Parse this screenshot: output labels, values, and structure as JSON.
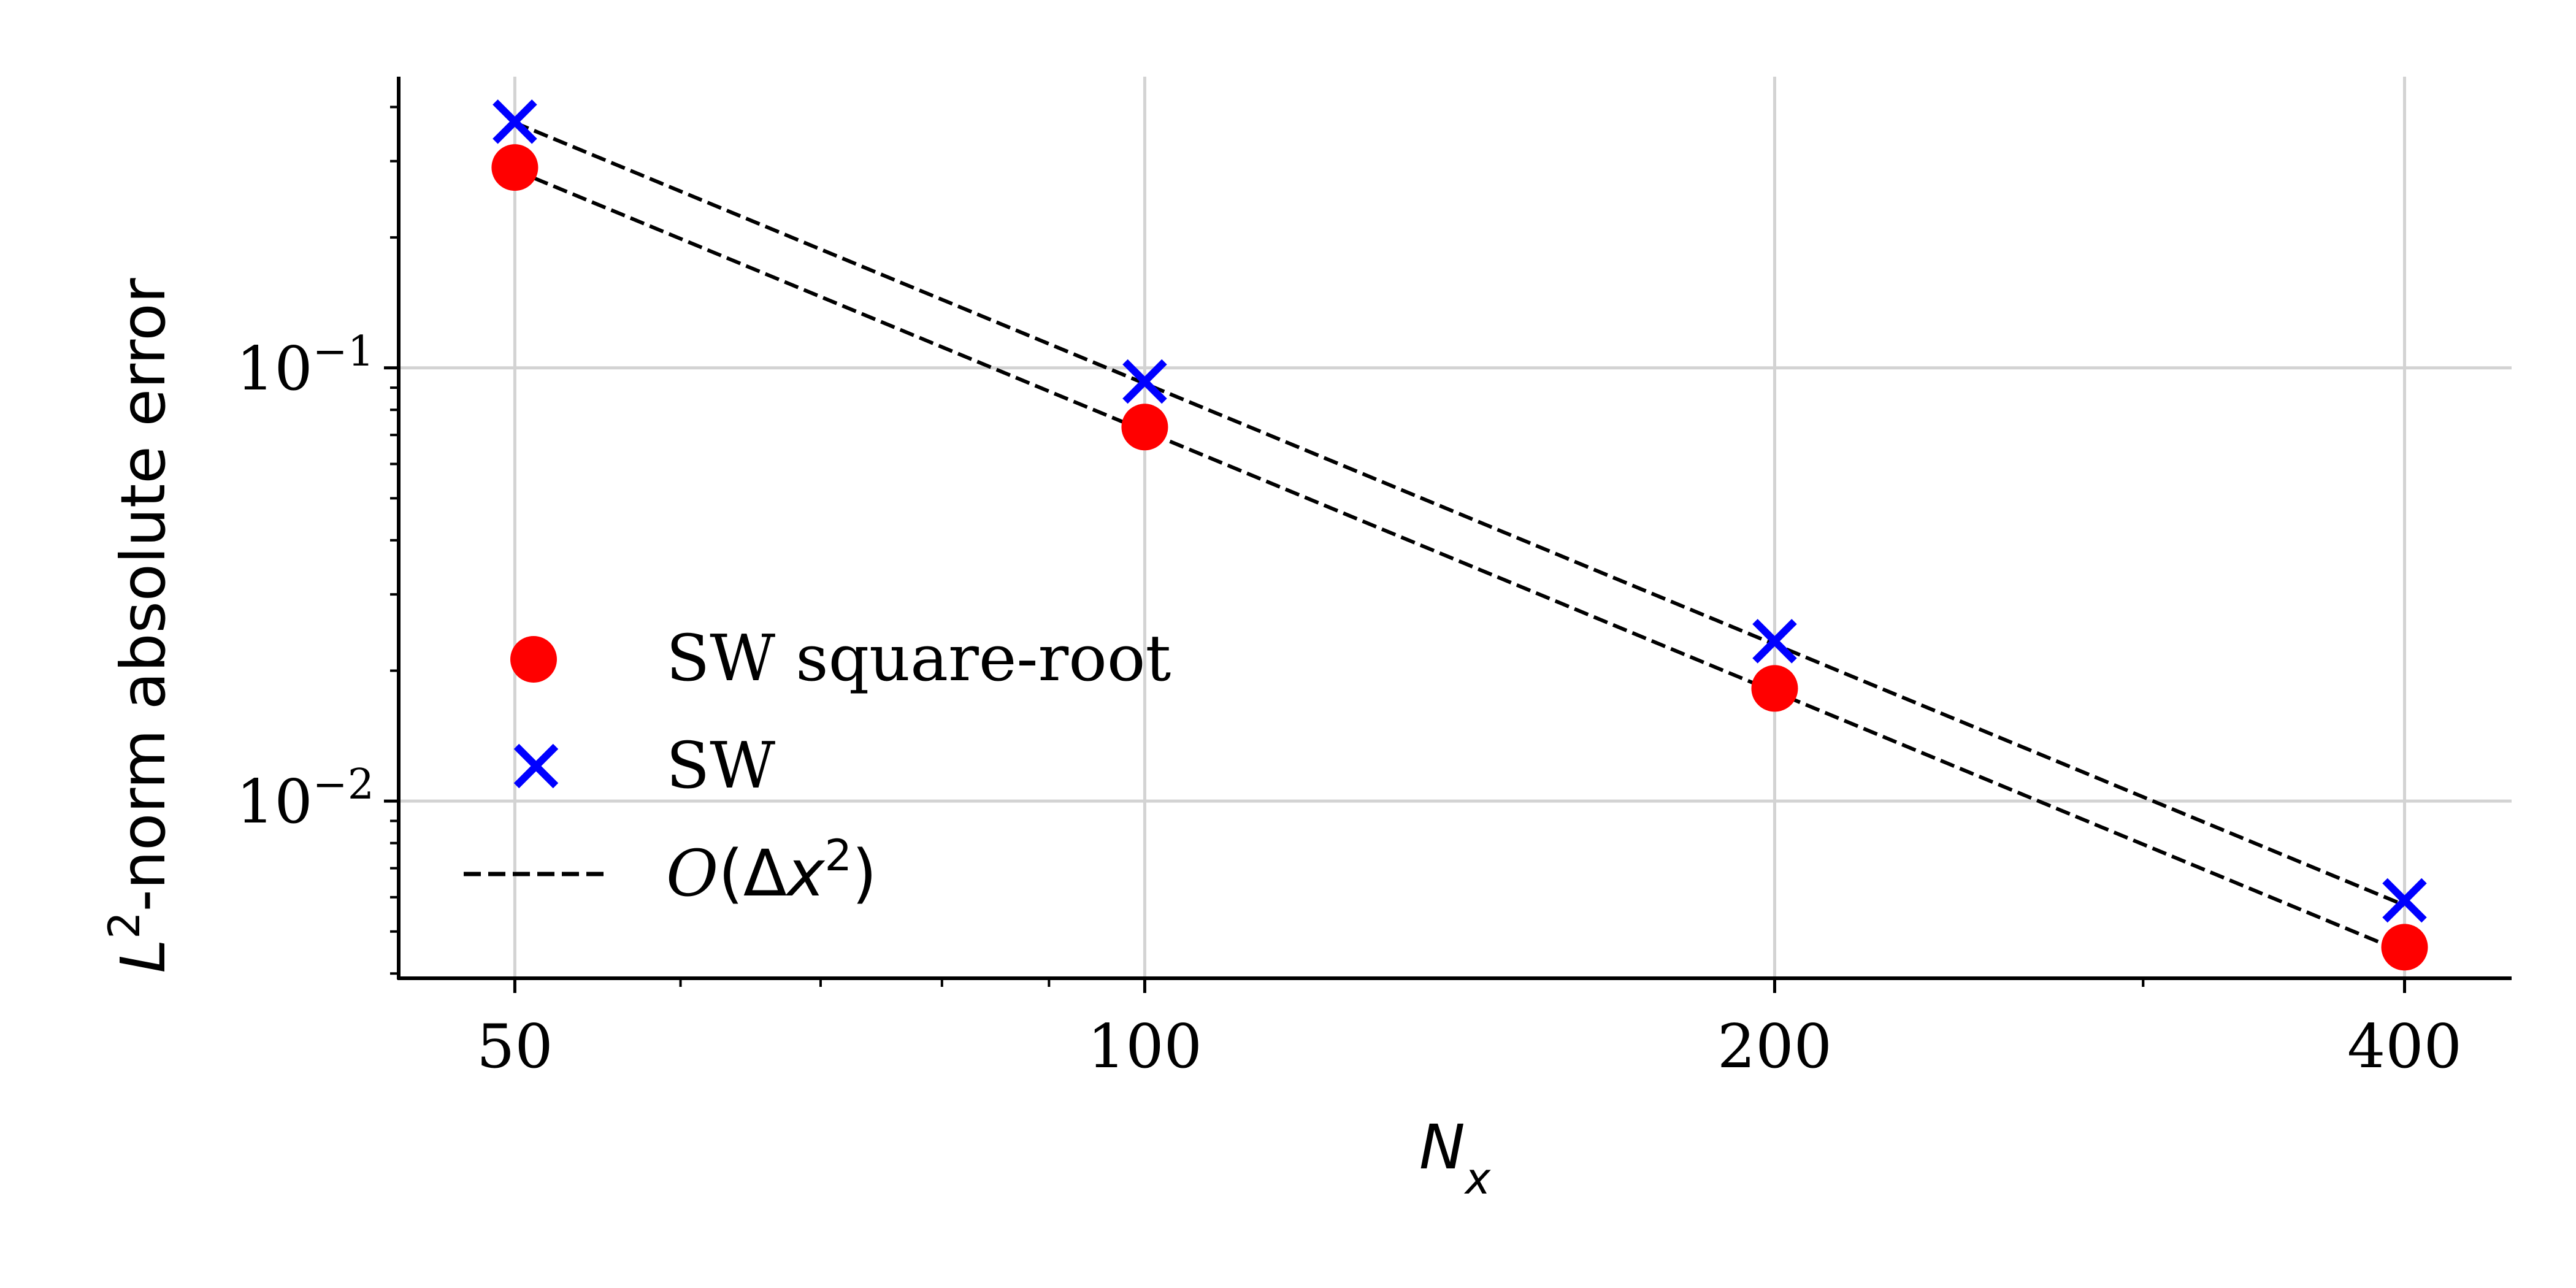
{
  "chart_data": {
    "type": "scatter",
    "title": "",
    "xlabel": "N_x",
    "ylabel": "L^2-norm absolute error",
    "xscale": "log",
    "yscale": "log",
    "xlim": [
      44,
      450
    ],
    "ylim": [
      0.0039,
      0.47
    ],
    "grid": true,
    "legend_position": "center-left",
    "x_ticks": [
      {
        "value": 50,
        "label": "50"
      },
      {
        "value": 100,
        "label": "100"
      },
      {
        "value": 200,
        "label": "200"
      },
      {
        "value": 400,
        "label": "400"
      }
    ],
    "y_ticks": [
      {
        "value": 0.1,
        "base": "10",
        "exp": "−1"
      },
      {
        "value": 0.01,
        "base": "10",
        "exp": "−2"
      }
    ],
    "series": [
      {
        "name": "SW square-root",
        "marker": "circle",
        "color": "#ff0000",
        "x": [
          50,
          100,
          200,
          400
        ],
        "y": [
          0.29,
          0.073,
          0.0182,
          0.0046
        ]
      },
      {
        "name": "SW",
        "marker": "x",
        "color": "#0000ff",
        "x": [
          50,
          100,
          200,
          400
        ],
        "y": [
          0.37,
          0.093,
          0.0234,
          0.0059
        ]
      }
    ],
    "reference_lines": [
      {
        "x": [
          50,
          400
        ],
        "y": [
          0.368,
          0.00575
        ],
        "style": "dashed",
        "color": "#000000"
      },
      {
        "x": [
          50,
          400
        ],
        "y": [
          0.286,
          0.00447
        ],
        "style": "dashed",
        "color": "#000000"
      }
    ],
    "legend": [
      {
        "label": "SW square-root",
        "marker": "circle",
        "color": "#ff0000"
      },
      {
        "label": "SW",
        "marker": "x",
        "color": "#0000ff"
      },
      {
        "label": "O(Δx^2)",
        "marker": "dashed-line",
        "color": "#000000"
      }
    ]
  }
}
